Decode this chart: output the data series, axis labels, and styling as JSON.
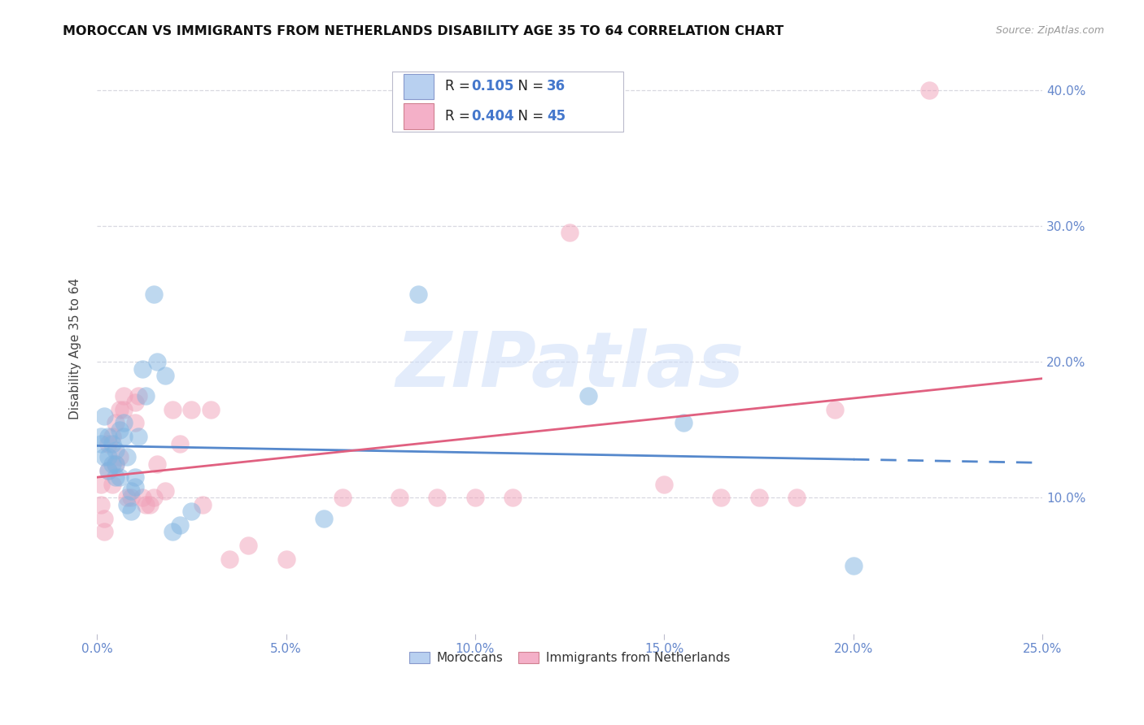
{
  "title": "MOROCCAN VS IMMIGRANTS FROM NETHERLANDS DISABILITY AGE 35 TO 64 CORRELATION CHART",
  "source": "Source: ZipAtlas.com",
  "ylabel": "Disability Age 35 to 64",
  "xlim": [
    0.0,
    0.25
  ],
  "ylim": [
    0.0,
    0.42
  ],
  "xticks": [
    0.0,
    0.05,
    0.1,
    0.15,
    0.2,
    0.25
  ],
  "yticks": [
    0.1,
    0.2,
    0.3,
    0.4
  ],
  "legend_labels_bottom": [
    "Moroccans",
    "Immigrants from Netherlands"
  ],
  "blue_scatter_color": "#7fb3e0",
  "pink_scatter_color": "#f0a0b8",
  "blue_line_color": "#5588cc",
  "pink_line_color": "#e06080",
  "axis_tick_color": "#6688cc",
  "grid_color": "#d8d8e0",
  "watermark_text": "ZIPatlas",
  "watermark_color": "#ccddf8",
  "legend_border_color": "#bbbbcc",
  "moroccans_x": [
    0.001,
    0.001,
    0.002,
    0.002,
    0.003,
    0.003,
    0.003,
    0.004,
    0.004,
    0.005,
    0.005,
    0.005,
    0.006,
    0.006,
    0.007,
    0.007,
    0.008,
    0.008,
    0.009,
    0.009,
    0.01,
    0.01,
    0.011,
    0.012,
    0.013,
    0.015,
    0.016,
    0.018,
    0.02,
    0.022,
    0.025,
    0.06,
    0.085,
    0.13,
    0.155,
    0.2
  ],
  "moroccans_y": [
    0.14,
    0.145,
    0.13,
    0.16,
    0.145,
    0.12,
    0.13,
    0.14,
    0.125,
    0.135,
    0.115,
    0.125,
    0.15,
    0.115,
    0.145,
    0.155,
    0.095,
    0.13,
    0.09,
    0.105,
    0.115,
    0.108,
    0.145,
    0.195,
    0.175,
    0.25,
    0.2,
    0.19,
    0.075,
    0.08,
    0.09,
    0.085,
    0.25,
    0.175,
    0.155,
    0.05
  ],
  "netherlands_x": [
    0.001,
    0.001,
    0.002,
    0.002,
    0.003,
    0.003,
    0.004,
    0.004,
    0.005,
    0.005,
    0.006,
    0.006,
    0.007,
    0.007,
    0.008,
    0.009,
    0.01,
    0.01,
    0.011,
    0.012,
    0.013,
    0.014,
    0.015,
    0.016,
    0.018,
    0.02,
    0.022,
    0.025,
    0.028,
    0.03,
    0.035,
    0.04,
    0.05,
    0.065,
    0.08,
    0.09,
    0.1,
    0.11,
    0.125,
    0.15,
    0.165,
    0.175,
    0.185,
    0.195,
    0.22
  ],
  "netherlands_y": [
    0.095,
    0.11,
    0.085,
    0.075,
    0.14,
    0.12,
    0.11,
    0.145,
    0.155,
    0.125,
    0.165,
    0.13,
    0.165,
    0.175,
    0.1,
    0.1,
    0.155,
    0.17,
    0.175,
    0.1,
    0.095,
    0.095,
    0.1,
    0.125,
    0.105,
    0.165,
    0.14,
    0.165,
    0.095,
    0.165,
    0.055,
    0.065,
    0.055,
    0.1,
    0.1,
    0.1,
    0.1,
    0.1,
    0.295,
    0.11,
    0.1,
    0.1,
    0.1,
    0.165,
    0.4
  ]
}
